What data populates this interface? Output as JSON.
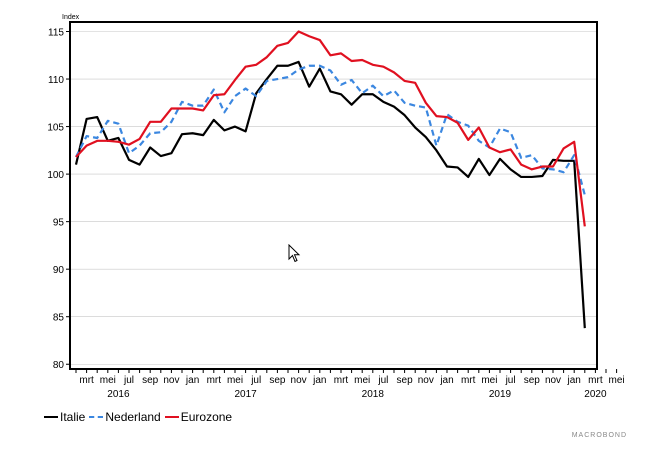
{
  "chart_data": {
    "type": "line",
    "ylabel": "Index",
    "ylim": [
      79.5,
      116
    ],
    "yticks": [
      80,
      85,
      90,
      95,
      100,
      105,
      110,
      115
    ],
    "x_start": "2016-02",
    "x_labels": [
      "mrt",
      "mei",
      "jul",
      "sep",
      "nov",
      "jan",
      "mrt",
      "mei",
      "jul",
      "sep",
      "nov",
      "jan",
      "mrt",
      "mei",
      "jul",
      "sep",
      "nov",
      "jan",
      "mrt",
      "mei",
      "jul",
      "sep",
      "nov",
      "jan",
      "mrt",
      "mei"
    ],
    "year_labels": [
      {
        "label": "2016",
        "month_index": 4
      },
      {
        "label": "2017",
        "month_index": 16
      },
      {
        "label": "2018",
        "month_index": 28
      },
      {
        "label": "2019",
        "month_index": 40
      },
      {
        "label": "2020",
        "month_index": 49
      }
    ],
    "series": [
      {
        "name": "Italie",
        "color": "#000000",
        "dash": "solid",
        "values": [
          101.0,
          105.8,
          106.0,
          103.5,
          103.8,
          101.5,
          101.0,
          102.8,
          101.9,
          102.2,
          104.2,
          104.3,
          104.1,
          105.7,
          104.6,
          105.0,
          104.5,
          108.5,
          110.0,
          111.4,
          111.4,
          111.8,
          109.2,
          111.1,
          108.7,
          108.4,
          107.3,
          108.4,
          108.4,
          107.6,
          107.1,
          106.2,
          104.9,
          103.9,
          102.5,
          100.8,
          100.7,
          99.7,
          101.6,
          99.9,
          101.6,
          100.5,
          99.7,
          99.7,
          99.8,
          101.5,
          101.4,
          101.4,
          83.8
        ]
      },
      {
        "name": "Nederland",
        "color": "#3b87e0",
        "dash": "dashed",
        "values": [
          101.8,
          104.0,
          103.8,
          105.6,
          105.3,
          102.2,
          103.0,
          104.3,
          104.4,
          105.5,
          107.6,
          107.2,
          107.2,
          108.9,
          106.5,
          108.2,
          109.0,
          108.2,
          109.8,
          110.0,
          110.2,
          111.0,
          111.4,
          111.4,
          110.9,
          109.4,
          109.9,
          108.5,
          109.3,
          108.2,
          108.8,
          107.5,
          107.2,
          107.0,
          103.0,
          106.3,
          105.5,
          105.1,
          103.5,
          102.8,
          104.8,
          104.4,
          101.7,
          102.0,
          100.6,
          100.5,
          100.2,
          102.0,
          97.8
        ]
      },
      {
        "name": "Eurozone",
        "color": "#e01020",
        "dash": "solid",
        "values": [
          101.8,
          103.0,
          103.5,
          103.5,
          103.4,
          103.1,
          103.7,
          105.5,
          105.5,
          106.9,
          106.9,
          106.9,
          106.7,
          108.3,
          108.4,
          109.9,
          111.3,
          111.5,
          112.3,
          113.5,
          113.8,
          115.0,
          114.5,
          114.1,
          112.5,
          112.7,
          111.9,
          112.0,
          111.5,
          111.3,
          110.7,
          109.8,
          109.6,
          107.5,
          106.1,
          106.0,
          105.4,
          103.6,
          104.9,
          102.8,
          102.3,
          102.6,
          101.0,
          100.5,
          100.8,
          100.8,
          102.7,
          103.4,
          94.5
        ]
      }
    ]
  },
  "brand": "MACROBOND"
}
